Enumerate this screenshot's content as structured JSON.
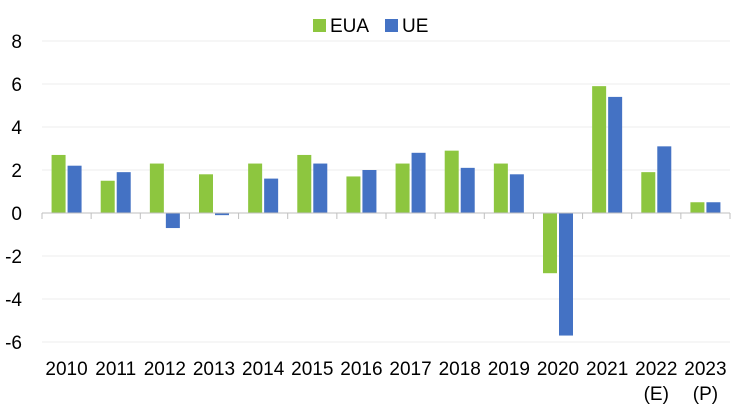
{
  "chart_data": {
    "type": "bar",
    "title": "",
    "xlabel": "",
    "ylabel": "",
    "ylim": [
      -6,
      8
    ],
    "yticks": [
      8,
      6,
      4,
      2,
      0,
      -2,
      -4,
      -6
    ],
    "grid": true,
    "legend_position": "top-center",
    "categories": [
      [
        "2010"
      ],
      [
        "2011"
      ],
      [
        "2012"
      ],
      [
        "2013"
      ],
      [
        "2014"
      ],
      [
        "2015"
      ],
      [
        "2016"
      ],
      [
        "2017"
      ],
      [
        "2018"
      ],
      [
        "2019"
      ],
      [
        "2020"
      ],
      [
        "2021"
      ],
      [
        "2022",
        "(E)"
      ],
      [
        "2023",
        "(P)"
      ]
    ],
    "series": [
      {
        "name": "EUA",
        "color": "#8DC63F",
        "values": [
          2.7,
          1.5,
          2.3,
          1.8,
          2.3,
          2.7,
          1.7,
          2.3,
          2.9,
          2.3,
          -2.8,
          5.9,
          1.9,
          0.5
        ]
      },
      {
        "name": "UE",
        "color": "#4472C4",
        "values": [
          2.2,
          1.9,
          -0.7,
          -0.1,
          1.6,
          2.3,
          2.0,
          2.8,
          2.1,
          1.8,
          -5.7,
          5.4,
          3.1,
          0.5
        ]
      }
    ]
  }
}
